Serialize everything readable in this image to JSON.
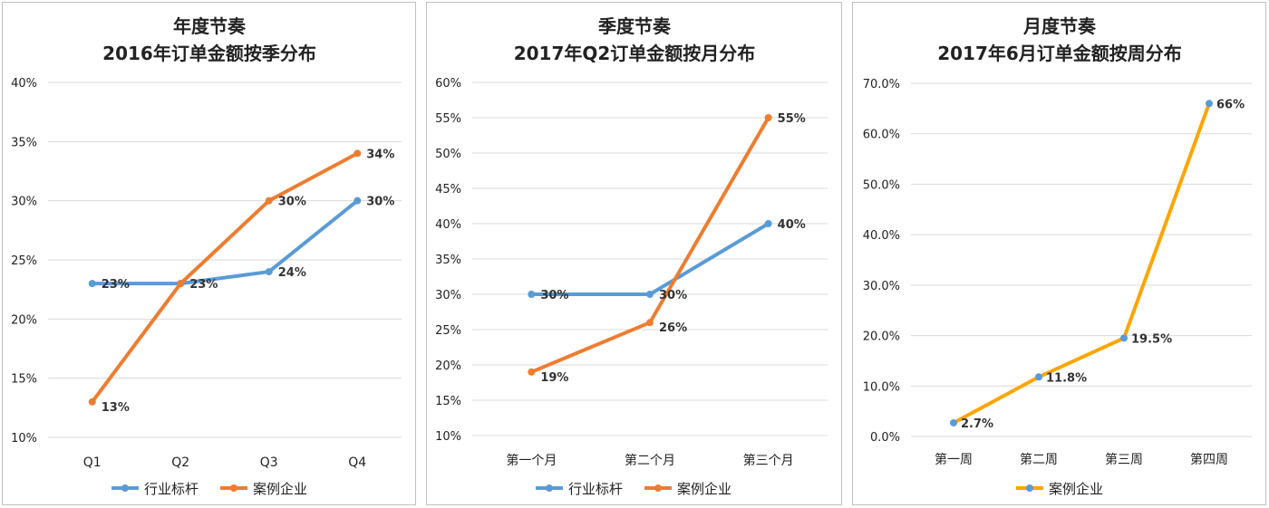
{
  "chart_data": [
    {
      "type": "line",
      "title": "年度节奏",
      "subtitle": "2016年订单金额按季分布",
      "categories": [
        "Q1",
        "Q2",
        "Q3",
        "Q4"
      ],
      "ylim": [
        0.1,
        0.4
      ],
      "yticks": [
        "10%",
        "15%",
        "20%",
        "25%",
        "30%",
        "35%",
        "40%"
      ],
      "series": [
        {
          "name": "行业标杆",
          "color": "#5b9bd5",
          "values": [
            0.23,
            0.23,
            0.24,
            0.3
          ],
          "labels": [
            "23%",
            "23%",
            "24%",
            "30%"
          ]
        },
        {
          "name": "案例企业",
          "color": "#ed7d31",
          "values": [
            0.13,
            0.23,
            0.3,
            0.34
          ],
          "labels": [
            "13%",
            "",
            "30%",
            "34%"
          ]
        }
      ],
      "grid": true,
      "legend": "bottom"
    },
    {
      "type": "line",
      "title": "季度节奏",
      "subtitle": "2017年Q2订单金额按月分布",
      "categories": [
        "第一个月",
        "第二个月",
        "第三个月"
      ],
      "ylim": [
        0.1,
        0.6
      ],
      "yticks": [
        "10%",
        "15%",
        "20%",
        "25%",
        "30%",
        "35%",
        "40%",
        "45%",
        "50%",
        "55%",
        "60%"
      ],
      "series": [
        {
          "name": "行业标杆",
          "color": "#5b9bd5",
          "values": [
            0.3,
            0.3,
            0.4
          ],
          "labels": [
            "30%",
            "30%",
            "40%"
          ]
        },
        {
          "name": "案例企业",
          "color": "#ed7d31",
          "values": [
            0.19,
            0.26,
            0.55
          ],
          "labels": [
            "19%",
            "26%",
            "55%"
          ]
        }
      ],
      "grid": true,
      "legend": "bottom"
    },
    {
      "type": "line",
      "title": "月度节奏",
      "subtitle": "2017年6月订单金额按周分布",
      "categories": [
        "第一周",
        "第二周",
        "第三周",
        "第四周"
      ],
      "ylim": [
        0.0,
        0.7
      ],
      "yticks": [
        "0.0%",
        "10.0%",
        "20.0%",
        "30.0%",
        "40.0%",
        "50.0%",
        "60.0%",
        "70.0%"
      ],
      "series": [
        {
          "name": "案例企业",
          "color": "#ffa500",
          "marker_color": "#5b9bd5",
          "values": [
            0.027,
            0.118,
            0.195,
            0.66
          ],
          "labels": [
            "2.7%",
            "11.8%",
            "19.5%",
            "66%"
          ]
        }
      ],
      "grid": true,
      "legend": "bottom"
    }
  ]
}
